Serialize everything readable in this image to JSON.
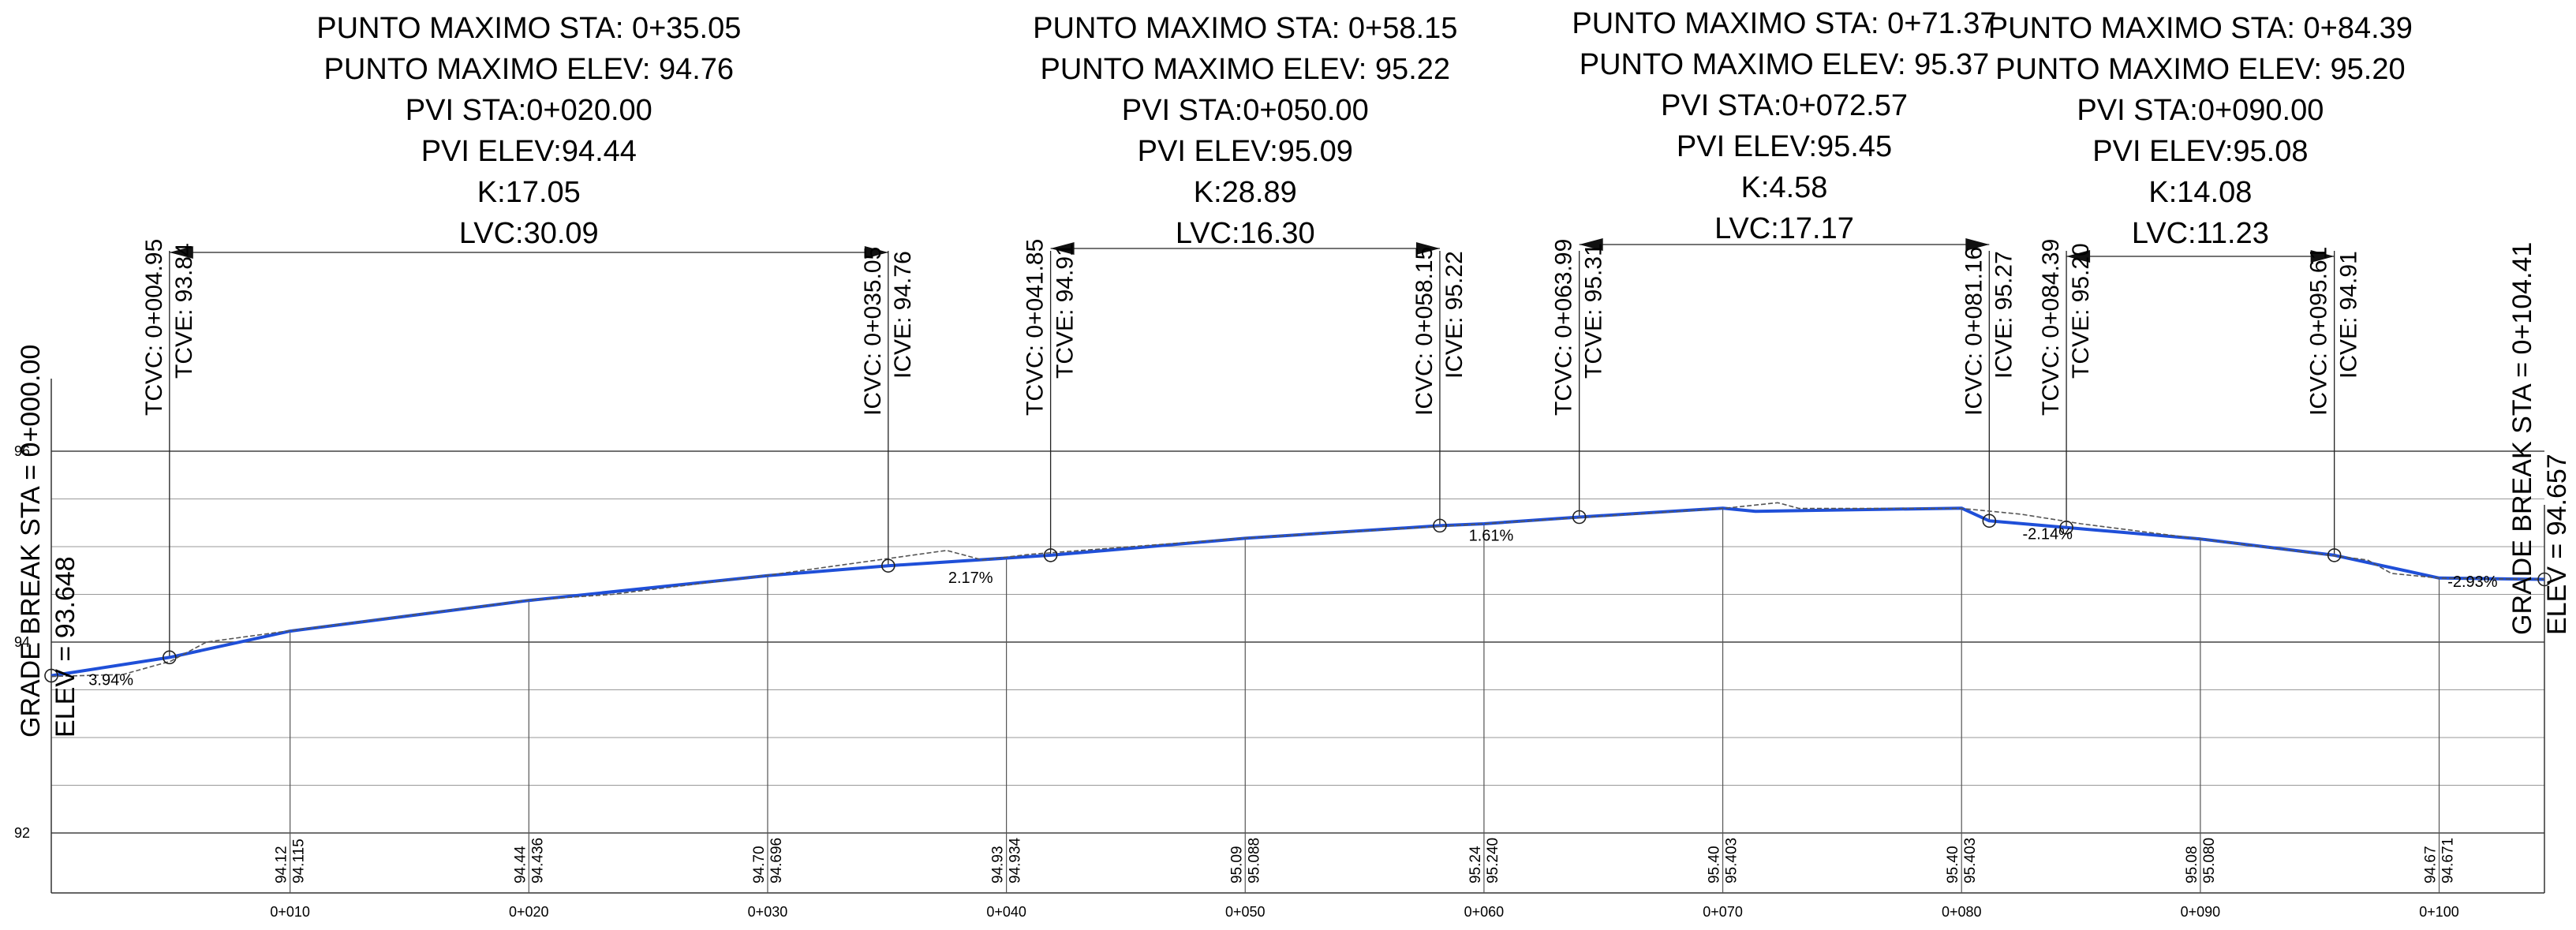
{
  "chart_data": {
    "type": "line",
    "title": "",
    "xlabel": "",
    "ylabel": "",
    "x_range": [
      0,
      104.41
    ],
    "y_range": [
      92,
      96
    ],
    "y_ticks": [
      {
        "value": 92,
        "label": "92"
      },
      {
        "value": 94,
        "label": "94"
      },
      {
        "value": 96,
        "label": "96"
      }
    ],
    "x_ticks": [
      {
        "value": 10,
        "label": "0+010"
      },
      {
        "value": 20,
        "label": "0+020"
      },
      {
        "value": 30,
        "label": "0+030"
      },
      {
        "value": 40,
        "label": "0+040"
      },
      {
        "value": 50,
        "label": "0+050"
      },
      {
        "value": 60,
        "label": "0+060"
      },
      {
        "value": 70,
        "label": "0+070"
      },
      {
        "value": 80,
        "label": "0+080"
      },
      {
        "value": 90,
        "label": "0+090"
      },
      {
        "value": 100,
        "label": "0+100"
      }
    ],
    "series": [
      {
        "role": "design-profile",
        "color": "#1f4fd8",
        "points": [
          [
            0,
            93.648
          ],
          [
            4.95,
            93.84
          ],
          [
            10,
            94.115
          ],
          [
            20,
            94.436
          ],
          [
            30,
            94.696
          ],
          [
            35.05,
            94.8
          ],
          [
            41.85,
            94.91
          ],
          [
            50,
            95.088
          ],
          [
            58.15,
            95.22
          ],
          [
            60,
            95.24
          ],
          [
            63.99,
            95.31
          ],
          [
            70,
            95.403
          ],
          [
            71.37,
            95.37
          ],
          [
            80,
            95.403
          ],
          [
            81.16,
            95.27
          ],
          [
            84.39,
            95.2
          ],
          [
            90,
            95.08
          ],
          [
            95.61,
            94.91
          ],
          [
            100,
            94.671
          ],
          [
            104.41,
            94.657
          ]
        ]
      },
      {
        "role": "existing-ground",
        "color": "#555555",
        "points": [
          [
            0,
            93.64
          ],
          [
            3,
            93.66
          ],
          [
            5,
            93.8
          ],
          [
            6.5,
            94.0
          ],
          [
            10,
            94.12
          ],
          [
            20,
            94.44
          ],
          [
            23.5,
            94.5
          ],
          [
            30,
            94.7
          ],
          [
            37.5,
            94.96
          ],
          [
            39,
            94.86
          ],
          [
            41,
            94.92
          ],
          [
            50,
            95.09
          ],
          [
            60,
            95.24
          ],
          [
            70,
            95.4
          ],
          [
            72.3,
            95.46
          ],
          [
            73.2,
            95.4
          ],
          [
            80,
            95.4
          ],
          [
            82.5,
            95.34
          ],
          [
            85,
            95.24
          ],
          [
            90,
            95.08
          ],
          [
            97,
            94.86
          ],
          [
            98,
            94.72
          ],
          [
            100,
            94.67
          ],
          [
            104.41,
            94.657
          ]
        ]
      }
    ],
    "station_readings": [
      {
        "x": 10,
        "existing": "94.12",
        "design": "94.115"
      },
      {
        "x": 20,
        "existing": "94.44",
        "design": "94.436"
      },
      {
        "x": 30,
        "existing": "94.70",
        "design": "94.696"
      },
      {
        "x": 40,
        "existing": "94.93",
        "design": "94.934"
      },
      {
        "x": 50,
        "existing": "95.09",
        "design": "95.088"
      },
      {
        "x": 60,
        "existing": "95.24",
        "design": "95.240"
      },
      {
        "x": 70,
        "existing": "95.40",
        "design": "95.403"
      },
      {
        "x": 80,
        "existing": "95.40",
        "design": "95.403"
      },
      {
        "x": 90,
        "existing": "95.08",
        "design": "95.080"
      },
      {
        "x": 100,
        "existing": "94.67",
        "design": "94.671"
      }
    ],
    "curve_points": [
      {
        "x": 4.95,
        "y": 93.84,
        "text1": "TCVC: 0+004.95",
        "text2": "TCVE: 93.84"
      },
      {
        "x": 35.05,
        "y": 94.8,
        "text1": "ICVC: 0+035.05",
        "text2": "ICVE: 94.76"
      },
      {
        "x": 41.85,
        "y": 94.91,
        "text1": "TCVC: 0+041.85",
        "text2": "TCVE: 94.91"
      },
      {
        "x": 58.15,
        "y": 95.22,
        "text1": "ICVC: 0+058.15",
        "text2": "ICVE: 95.22"
      },
      {
        "x": 63.99,
        "y": 95.31,
        "text1": "TCVC: 0+063.99",
        "text2": "TCVE: 95.31"
      },
      {
        "x": 81.16,
        "y": 95.27,
        "text1": "ICVC: 0+081.16",
        "text2": "ICVE: 95.27"
      },
      {
        "x": 84.39,
        "y": 95.2,
        "text1": "TCVC: 0+084.39",
        "text2": "TCVE: 95.20"
      },
      {
        "x": 95.61,
        "y": 94.91,
        "text1": "ICVC: 0+095.61",
        "text2": "ICVE: 94.91"
      }
    ],
    "vertical_curves": [
      {
        "start": 4.95,
        "end": 35.05,
        "lines": [
          "PUNTO MAXIMO  STA: 0+35.05",
          "PUNTO MAXIMO ELEV: 94.76",
          "PVI STA:0+020.00",
          "PVI ELEV:94.44",
          "K:17.05",
          "LVC:30.09"
        ]
      },
      {
        "start": 41.85,
        "end": 58.15,
        "lines": [
          "PUNTO MAXIMO  STA: 0+58.15",
          "PUNTO MAXIMO ELEV: 95.22",
          "PVI STA:0+050.00",
          "PVI ELEV:95.09",
          "K:28.89",
          "LVC:16.30"
        ]
      },
      {
        "start": 63.99,
        "end": 81.16,
        "lines": [
          "PUNTO MAXIMO  STA: 0+71.37",
          "PUNTO MAXIMO ELEV: 95.37",
          "PVI STA:0+072.57",
          "PVI ELEV:95.45",
          "K:4.58",
          "LVC:17.17"
        ]
      },
      {
        "start": 84.39,
        "end": 95.61,
        "lines": [
          "PUNTO MAXIMO  STA: 0+84.39",
          "PUNTO MAXIMO ELEV: 95.20",
          "PVI STA:0+090.00",
          "PVI ELEV:95.08",
          "K:14.08",
          "LVC:11.23"
        ]
      }
    ],
    "grades": [
      {
        "x": 2.5,
        "y": 93.55,
        "label": "3.94%"
      },
      {
        "x": 38.5,
        "y": 94.62,
        "label": "2.17%"
      },
      {
        "x": 60.3,
        "y": 95.06,
        "label": "1.61%"
      },
      {
        "x": 83.6,
        "y": 95.08,
        "label": "-2.14%"
      },
      {
        "x": 101.4,
        "y": 94.58,
        "label": "-2.93%"
      }
    ],
    "grade_breaks": [
      {
        "x": 0,
        "lines": [
          "GRADE BREAK STA = 0+000.00",
          "ELEV =  93.648"
        ]
      },
      {
        "x": 104.41,
        "lines": [
          "GRADE BREAK STA = 0+104.41",
          "ELEV =  94.657"
        ]
      }
    ]
  }
}
